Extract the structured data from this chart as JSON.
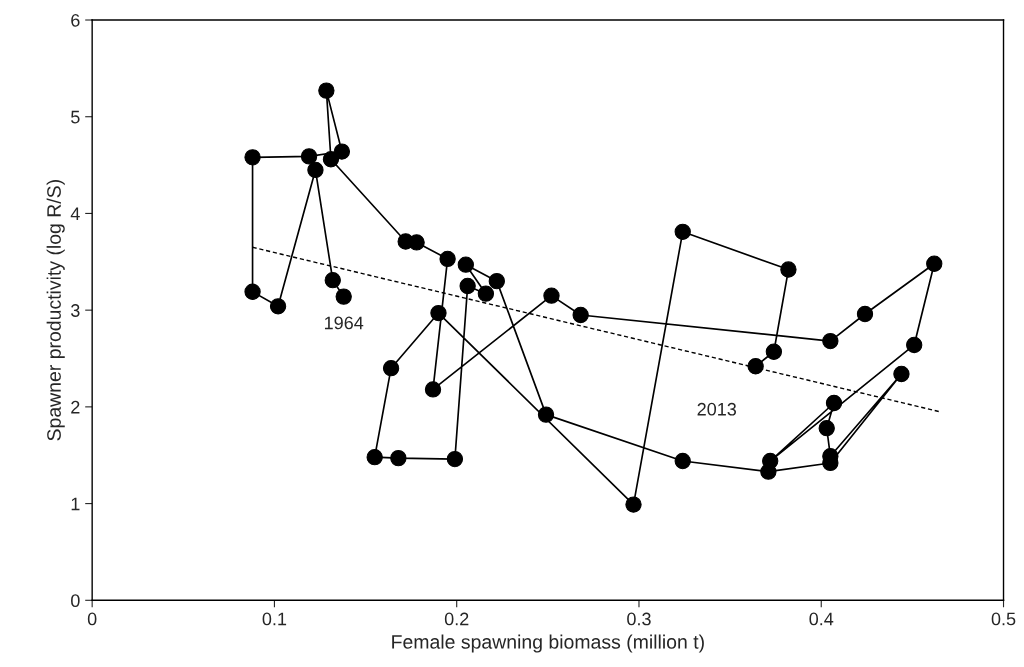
{
  "chart_data": {
    "type": "line",
    "xlabel": "Female spawning biomass (million t)",
    "ylabel": "Spawner productivity (log R/S)",
    "xlim": [
      0,
      0.5
    ],
    "xticks": [
      0,
      0.1,
      0.2,
      0.3,
      0.4,
      0.5
    ],
    "ylim": [
      0,
      6
    ],
    "yticks": [
      0,
      1,
      2,
      3,
      4,
      5,
      6
    ],
    "grid": false,
    "legend": false,
    "series": [
      {
        "color": "#000000",
        "marker": "circle",
        "line_style": "solid",
        "x": [
          0.138,
          0.132,
          0.1225,
          0.102,
          0.088,
          0.088,
          0.119,
          0.137,
          0.1285,
          0.131,
          0.172,
          0.178,
          0.195,
          0.187,
          0.252,
          0.268,
          0.405,
          0.424,
          0.462,
          0.451,
          0.372,
          0.407,
          0.403,
          0.405,
          0.444,
          0.405,
          0.371,
          0.324,
          0.249,
          0.222,
          0.205,
          0.216,
          0.206,
          0.199,
          0.168,
          0.155,
          0.164,
          0.19,
          0.297,
          0.324,
          0.382,
          0.374,
          0.364
        ],
        "values": [
          3.14,
          3.31,
          4.45,
          3.04,
          3.19,
          4.58,
          4.59,
          4.64,
          5.27,
          4.56,
          3.71,
          3.7,
          3.53,
          2.18,
          3.15,
          2.95,
          2.68,
          2.96,
          3.48,
          2.64,
          1.44,
          2.04,
          1.78,
          1.49,
          2.34,
          1.42,
          1.33,
          1.44,
          1.92,
          3.3,
          3.47,
          3.17,
          3.25,
          1.46,
          1.47,
          1.48,
          2.4,
          2.97,
          0.99,
          3.81,
          3.42,
          2.57,
          2.42
        ]
      },
      {
        "color": "#000000",
        "marker": "none",
        "line_style": "dashed",
        "x": [
          0.088,
          0.465
        ],
        "values": [
          3.65,
          1.95
        ]
      }
    ],
    "annotations": [
      {
        "text": "1964",
        "x": 0.138,
        "y": 3.14
      },
      {
        "text": "2013",
        "x": 0.364,
        "y": 2.42
      }
    ]
  }
}
